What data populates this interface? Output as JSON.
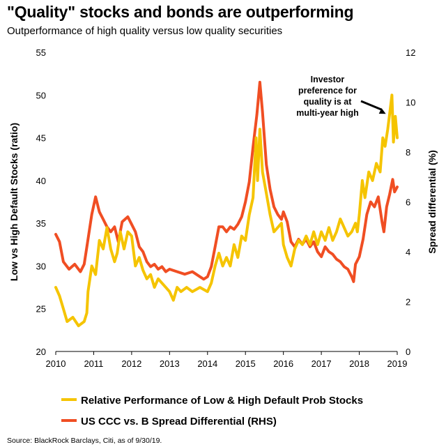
{
  "header": {
    "title": "\"Quality\" stocks and bonds are outperforming",
    "subtitle": "Outperformance of high quality versus low quality securities"
  },
  "source": "Source: BlackRock Barclays, Citi, as of 9/30/19.",
  "chart_data": {
    "type": "line",
    "x_ticks": [
      "2010",
      "2011",
      "2012",
      "2013",
      "2014",
      "2015",
      "2016",
      "2017",
      "2018",
      "2019"
    ],
    "xlim": [
      2010,
      2019
    ],
    "y_left": {
      "label": "Low vs High Default Stocks (ratio)",
      "ticks": [
        20,
        25,
        30,
        35,
        40,
        45,
        50,
        55
      ],
      "lim": [
        20,
        55
      ]
    },
    "y_right": {
      "label": "Spread differential (%)",
      "ticks": [
        0,
        2,
        4,
        6,
        8,
        10,
        12
      ],
      "lim": [
        0,
        12
      ]
    },
    "annotation": {
      "lines": [
        "Investor",
        "preference  for",
        "quality is at",
        "multi-year  high"
      ],
      "x": 2018.7,
      "y": 47.8
    },
    "legend_position": "bottom",
    "series": [
      {
        "name": "Relative Performance of Low & High Default Prob Stocks",
        "axis": "left",
        "color": "#F5C400",
        "points": [
          [
            2010.0,
            27.5
          ],
          [
            2010.1,
            26.5
          ],
          [
            2010.2,
            25.0
          ],
          [
            2010.3,
            23.5
          ],
          [
            2010.45,
            24.0
          ],
          [
            2010.6,
            23.0
          ],
          [
            2010.75,
            23.5
          ],
          [
            2010.82,
            24.5
          ],
          [
            2010.85,
            27.0
          ],
          [
            2010.95,
            30.0
          ],
          [
            2011.05,
            29.0
          ],
          [
            2011.15,
            33.0
          ],
          [
            2011.25,
            32.0
          ],
          [
            2011.35,
            34.5
          ],
          [
            2011.45,
            32.0
          ],
          [
            2011.55,
            30.5
          ],
          [
            2011.62,
            31.5
          ],
          [
            2011.7,
            34.0
          ],
          [
            2011.8,
            32.0
          ],
          [
            2011.9,
            34.0
          ],
          [
            2012.0,
            33.5
          ],
          [
            2012.1,
            30.0
          ],
          [
            2012.2,
            31.0
          ],
          [
            2012.3,
            29.5
          ],
          [
            2012.4,
            28.5
          ],
          [
            2012.5,
            29.0
          ],
          [
            2012.6,
            27.5
          ],
          [
            2012.7,
            28.5
          ],
          [
            2012.8,
            28.0
          ],
          [
            2012.9,
            27.5
          ],
          [
            2013.0,
            27.0
          ],
          [
            2013.1,
            26.0
          ],
          [
            2013.2,
            27.5
          ],
          [
            2013.3,
            27.0
          ],
          [
            2013.45,
            27.5
          ],
          [
            2013.6,
            27.0
          ],
          [
            2013.8,
            27.5
          ],
          [
            2014.0,
            27.0
          ],
          [
            2014.1,
            28.0
          ],
          [
            2014.2,
            30.0
          ],
          [
            2014.3,
            31.5
          ],
          [
            2014.4,
            30.0
          ],
          [
            2014.5,
            31.0
          ],
          [
            2014.6,
            30.0
          ],
          [
            2014.7,
            32.5
          ],
          [
            2014.8,
            31.0
          ],
          [
            2014.9,
            33.5
          ],
          [
            2015.0,
            33.0
          ],
          [
            2015.1,
            36.0
          ],
          [
            2015.2,
            38.0
          ],
          [
            2015.28,
            45.0
          ],
          [
            2015.32,
            40.0
          ],
          [
            2015.38,
            46.0
          ],
          [
            2015.45,
            41.0
          ],
          [
            2015.55,
            38.5
          ],
          [
            2015.65,
            36.0
          ],
          [
            2015.75,
            34.0
          ],
          [
            2015.85,
            34.5
          ],
          [
            2015.95,
            35.0
          ],
          [
            2016.0,
            32.5
          ],
          [
            2016.1,
            31.0
          ],
          [
            2016.2,
            30.0
          ],
          [
            2016.3,
            32.0
          ],
          [
            2016.4,
            33.0
          ],
          [
            2016.5,
            32.5
          ],
          [
            2016.6,
            33.5
          ],
          [
            2016.7,
            32.5
          ],
          [
            2016.8,
            34.0
          ],
          [
            2016.9,
            32.5
          ],
          [
            2017.0,
            34.0
          ],
          [
            2017.1,
            33.0
          ],
          [
            2017.2,
            34.5
          ],
          [
            2017.3,
            33.0
          ],
          [
            2017.4,
            34.0
          ],
          [
            2017.5,
            35.5
          ],
          [
            2017.6,
            34.5
          ],
          [
            2017.7,
            33.5
          ],
          [
            2017.8,
            34.0
          ],
          [
            2017.9,
            35.0
          ],
          [
            2017.95,
            34.0
          ],
          [
            2018.0,
            36.0
          ],
          [
            2018.08,
            40.0
          ],
          [
            2018.15,
            38.0
          ],
          [
            2018.25,
            41.0
          ],
          [
            2018.35,
            40.0
          ],
          [
            2018.45,
            42.0
          ],
          [
            2018.55,
            41.0
          ],
          [
            2018.62,
            45.0
          ],
          [
            2018.68,
            44.0
          ],
          [
            2018.75,
            46.0
          ],
          [
            2018.82,
            48.5
          ],
          [
            2018.86,
            50.0
          ],
          [
            2018.9,
            44.5
          ],
          [
            2018.95,
            47.5
          ],
          [
            2019.0,
            45.0
          ]
        ]
      },
      {
        "name": "US CCC vs. B Spread Differential (RHS)",
        "axis": "right",
        "color": "#F04E23",
        "points": [
          [
            2010.0,
            4.7
          ],
          [
            2010.1,
            4.4
          ],
          [
            2010.2,
            3.6
          ],
          [
            2010.35,
            3.3
          ],
          [
            2010.5,
            3.5
          ],
          [
            2010.65,
            3.2
          ],
          [
            2010.75,
            3.5
          ],
          [
            2010.85,
            4.5
          ],
          [
            2010.95,
            5.5
          ],
          [
            2011.05,
            6.2
          ],
          [
            2011.15,
            5.6
          ],
          [
            2011.25,
            5.3
          ],
          [
            2011.35,
            5.0
          ],
          [
            2011.45,
            4.8
          ],
          [
            2011.55,
            5.0
          ],
          [
            2011.65,
            4.4
          ],
          [
            2011.75,
            5.2
          ],
          [
            2011.9,
            5.4
          ],
          [
            2012.0,
            5.1
          ],
          [
            2012.1,
            4.8
          ],
          [
            2012.2,
            4.2
          ],
          [
            2012.3,
            4.0
          ],
          [
            2012.4,
            3.6
          ],
          [
            2012.5,
            3.4
          ],
          [
            2012.6,
            3.5
          ],
          [
            2012.7,
            3.3
          ],
          [
            2012.8,
            3.4
          ],
          [
            2012.9,
            3.2
          ],
          [
            2013.0,
            3.3
          ],
          [
            2013.2,
            3.2
          ],
          [
            2013.4,
            3.1
          ],
          [
            2013.6,
            3.2
          ],
          [
            2013.8,
            3.0
          ],
          [
            2013.9,
            2.9
          ],
          [
            2014.0,
            3.0
          ],
          [
            2014.1,
            3.4
          ],
          [
            2014.2,
            4.2
          ],
          [
            2014.3,
            5.0
          ],
          [
            2014.4,
            5.0
          ],
          [
            2014.5,
            4.8
          ],
          [
            2014.6,
            5.0
          ],
          [
            2014.7,
            4.9
          ],
          [
            2014.8,
            5.1
          ],
          [
            2014.9,
            5.4
          ],
          [
            2015.0,
            6.0
          ],
          [
            2015.1,
            6.8
          ],
          [
            2015.2,
            8.2
          ],
          [
            2015.3,
            9.5
          ],
          [
            2015.38,
            10.8
          ],
          [
            2015.45,
            9.6
          ],
          [
            2015.55,
            7.5
          ],
          [
            2015.65,
            6.5
          ],
          [
            2015.75,
            5.8
          ],
          [
            2015.85,
            5.5
          ],
          [
            2015.95,
            5.3
          ],
          [
            2016.0,
            5.6
          ],
          [
            2016.1,
            5.2
          ],
          [
            2016.2,
            4.4
          ],
          [
            2016.3,
            4.2
          ],
          [
            2016.4,
            4.5
          ],
          [
            2016.5,
            4.3
          ],
          [
            2016.6,
            4.5
          ],
          [
            2016.7,
            4.2
          ],
          [
            2016.8,
            4.4
          ],
          [
            2016.9,
            4.0
          ],
          [
            2017.0,
            3.8
          ],
          [
            2017.1,
            4.2
          ],
          [
            2017.2,
            4.0
          ],
          [
            2017.3,
            3.9
          ],
          [
            2017.4,
            3.7
          ],
          [
            2017.5,
            3.6
          ],
          [
            2017.6,
            3.4
          ],
          [
            2017.7,
            3.3
          ],
          [
            2017.8,
            3.0
          ],
          [
            2017.85,
            2.8
          ],
          [
            2017.9,
            3.5
          ],
          [
            2018.0,
            3.8
          ],
          [
            2018.1,
            4.5
          ],
          [
            2018.2,
            5.5
          ],
          [
            2018.3,
            6.0
          ],
          [
            2018.4,
            5.8
          ],
          [
            2018.5,
            6.2
          ],
          [
            2018.6,
            5.2
          ],
          [
            2018.65,
            4.8
          ],
          [
            2018.72,
            5.8
          ],
          [
            2018.8,
            6.3
          ],
          [
            2018.88,
            6.9
          ],
          [
            2018.93,
            6.4
          ],
          [
            2019.0,
            6.6
          ]
        ]
      }
    ]
  }
}
